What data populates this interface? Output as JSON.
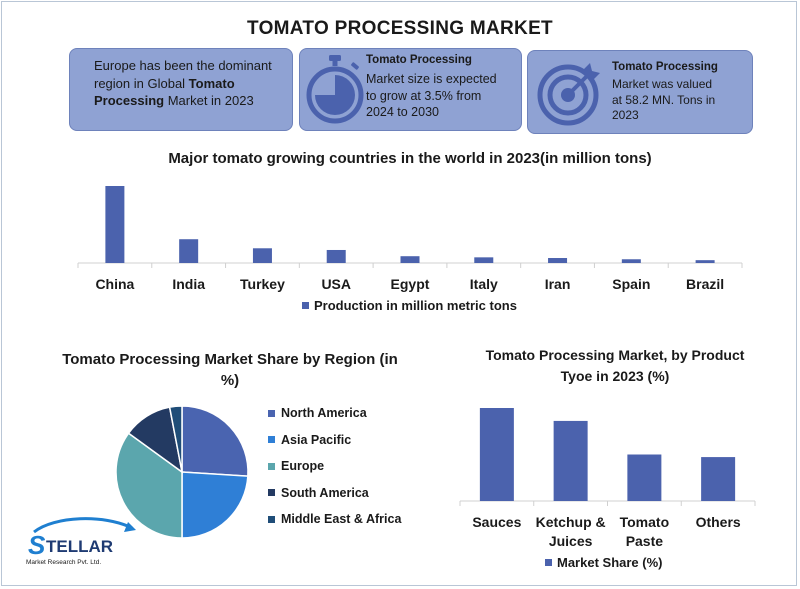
{
  "header": {
    "title": "TOMATO PROCESSING MARKET"
  },
  "cards": [
    {
      "pre": "Europe has been the dominant region in Global ",
      "bold": "Tomato Processing",
      "post": " Market in 2023"
    },
    {
      "title": "Tomato Processing",
      "lines": [
        "Market size is expected",
        "to grow at 3.5% from",
        "2024 to 2030"
      ],
      "icon": "stopwatch-icon"
    },
    {
      "title": "Tomato Processing",
      "lines": [
        "Market was valued",
        "at 58.2 MN. Tons in",
        "2023"
      ],
      "icon": "target-icon"
    }
  ],
  "logo": {
    "name": "STELLAR",
    "sub": "Market Research Pvt. Ltd."
  },
  "colors": {
    "bar": "#4b62ad",
    "card": "#8fa2d3",
    "north_america": "#4a64b0",
    "asia_pacific": "#2f7fd6",
    "europe": "#5ba6ad",
    "south_america": "#233a62",
    "mea": "#1f4d78"
  },
  "chart_data": [
    {
      "type": "bar",
      "title": "Major tomato growing countries in the world in 2023(in million tons)",
      "categories": [
        "China",
        "India",
        "Turkey",
        "USA",
        "Egypt",
        "Italy",
        "Iran",
        "Spain",
        "Brazil"
      ],
      "series": [
        {
          "name": "Production in million metric tons",
          "values": [
            68,
            21,
            13,
            11.5,
            6,
            5,
            4.4,
            3.3,
            2.5
          ]
        }
      ],
      "ylim": [
        0,
        68
      ],
      "grid": false,
      "legend": "bottom"
    },
    {
      "type": "pie",
      "title": "Tomato Processing Market Share by Region (in %)",
      "labels": [
        "North America",
        "Asia Pacific",
        "Europe",
        "South America",
        "Middle East & Africa"
      ],
      "values": [
        26,
        24,
        35,
        12,
        3
      ],
      "legend": "right"
    },
    {
      "type": "bar",
      "title": "Tomato Processing Market, by Product Tyoe in 2023 (%)",
      "categories": [
        "Sauces",
        "Ketchup & Juices",
        "Tomato Paste",
        "Others"
      ],
      "series": [
        {
          "name": "Market Share (%)",
          "values": [
            36,
            31,
            18,
            17
          ]
        }
      ],
      "ylim": [
        0,
        36
      ],
      "grid": false,
      "legend": "bottom"
    }
  ]
}
